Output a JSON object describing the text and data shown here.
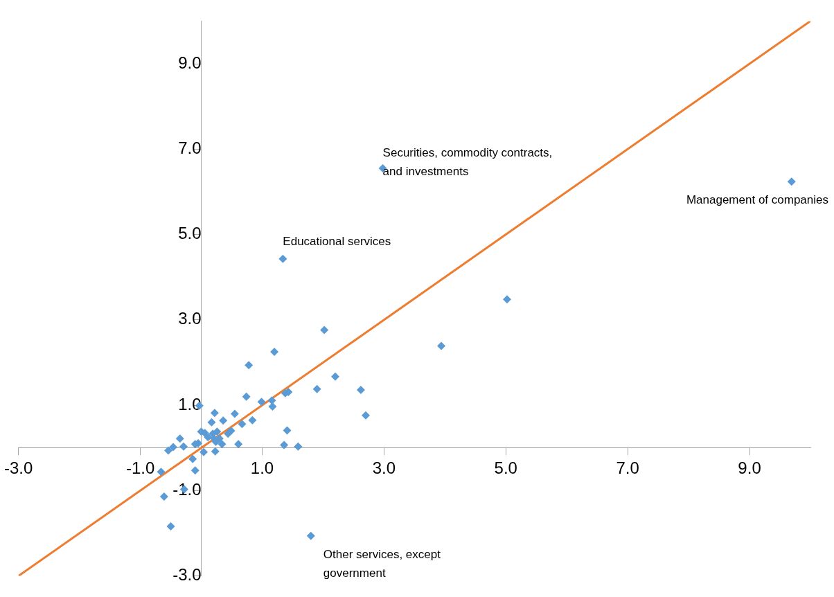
{
  "chart_data": {
    "type": "scatter",
    "xlim": [
      -3,
      10
    ],
    "ylim": [
      -3,
      10
    ],
    "xticks": [
      {
        "value": -3,
        "label": "-3.0"
      },
      {
        "value": -1,
        "label": "-1.0"
      },
      {
        "value": 1,
        "label": "1.0"
      },
      {
        "value": 3,
        "label": "3.0"
      },
      {
        "value": 5,
        "label": "5.0"
      },
      {
        "value": 7,
        "label": "7.0"
      },
      {
        "value": 9,
        "label": "9.0"
      }
    ],
    "yticks": [
      {
        "value": -3,
        "label": "-3.0"
      },
      {
        "value": -1,
        "label": "-1.0"
      },
      {
        "value": 1,
        "label": "1.0"
      },
      {
        "value": 3,
        "label": "3.0"
      },
      {
        "value": 5,
        "label": "5.0"
      },
      {
        "value": 7,
        "label": "7.0"
      },
      {
        "value": 9,
        "label": "9.0"
      }
    ],
    "grid": false,
    "legend": false,
    "marker": "diamond",
    "series": [
      {
        "color": "#5b9bd5",
        "x": [
          -0.03,
          0.22,
          0.17,
          0.36,
          0.55,
          0.67,
          0.84,
          0.0,
          0.06,
          0.19,
          0.26,
          0.11,
          0.21,
          0.3,
          0.44,
          0.49,
          0.24,
          0.34,
          -0.1,
          -0.05,
          0.04,
          0.23,
          0.61,
          -0.35,
          -0.46,
          -0.54,
          -0.29,
          -0.14,
          -0.1,
          -0.66,
          -0.61,
          -0.28,
          -0.5,
          1.8,
          1.41,
          1.36,
          1.59,
          0.74,
          0.99,
          1.16,
          1.17,
          1.38,
          1.43,
          5.02,
          2.02,
          1.2,
          0.78,
          3.94,
          2.2,
          1.9,
          2.62,
          2.7,
          2.98,
          1.34,
          9.69
        ],
        "values": [
          0.99,
          0.82,
          0.6,
          0.64,
          0.8,
          0.56,
          0.65,
          0.38,
          0.35,
          0.33,
          0.38,
          0.25,
          0.22,
          0.22,
          0.33,
          0.4,
          0.14,
          0.09,
          0.09,
          0.11,
          -0.1,
          -0.08,
          0.09,
          0.22,
          0.02,
          -0.06,
          0.03,
          -0.26,
          -0.53,
          -0.56,
          -1.14,
          -0.97,
          -1.84,
          -2.06,
          0.41,
          0.07,
          0.03,
          1.2,
          1.08,
          1.11,
          0.97,
          1.28,
          1.31,
          3.48,
          2.76,
          2.25,
          1.94,
          2.39,
          1.67,
          1.38,
          1.36,
          0.76,
          6.55,
          4.43,
          6.24
        ]
      },
      {
        "type": "line",
        "color": "#ed7d31",
        "x": [
          -3,
          10
        ],
        "values": [
          -3,
          10
        ],
        "marker": "none",
        "line_style": "solid"
      }
    ],
    "annotations": [
      {
        "text": "Securities, commodity contracts, and investments",
        "x": 2.98,
        "y": 6.55
      },
      {
        "text": "Educational services",
        "x": 1.34,
        "y": 4.43
      },
      {
        "text": "Management of companies",
        "x": 9.69,
        "y": 6.24
      },
      {
        "text": "Other services, except government",
        "x": 1.8,
        "y": -2.06
      }
    ]
  }
}
